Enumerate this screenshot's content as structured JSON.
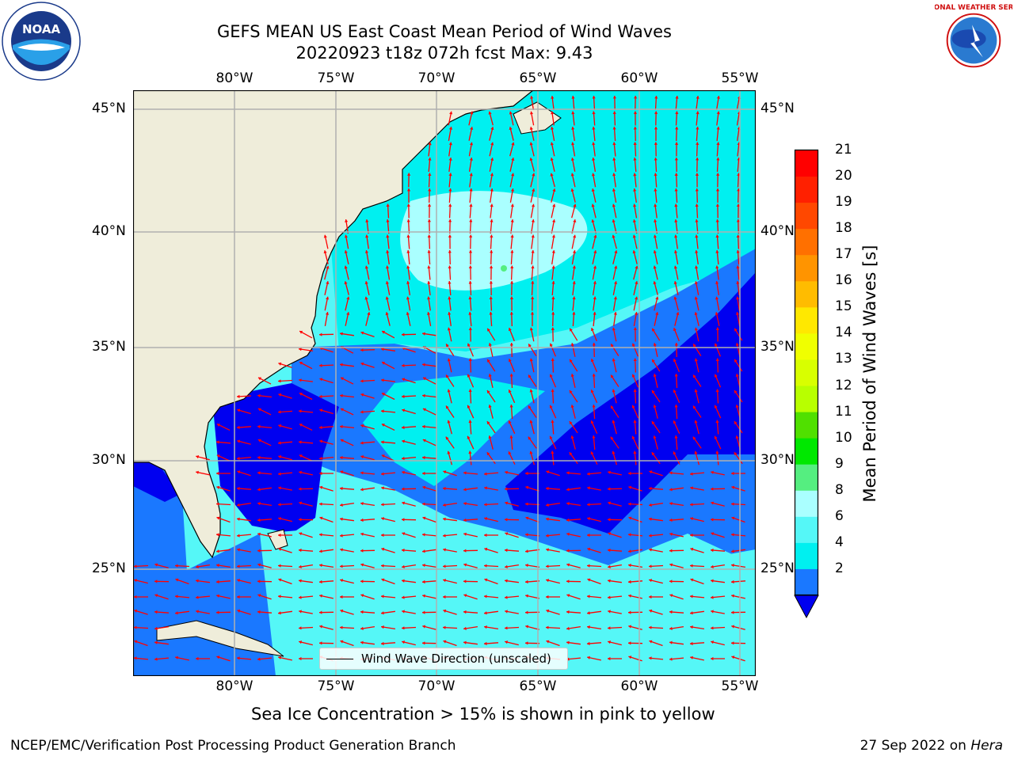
{
  "header": {
    "title": "GEFS MEAN US East Coast Mean Period of Wind Waves",
    "subtitle": "20220923 t18z 072h fcst   Max: 9.43"
  },
  "logos": {
    "left": {
      "icon": "noaa-logo-icon",
      "text": "NOAA"
    },
    "right": {
      "icon": "nws-logo-icon",
      "text": "NATIONAL WEATHER SERVICE"
    }
  },
  "map": {
    "lon_ticks": [
      "80°W",
      "75°W",
      "70°W",
      "65°W",
      "60°W",
      "55°W"
    ],
    "lat_ticks": [
      "45°N",
      "40°N",
      "35°N",
      "30°N",
      "25°N"
    ],
    "legend_text": "Wind Wave Direction (unscaled)",
    "colors": {
      "land": "#efedda",
      "lt_2": "#0000f0",
      "c2_4": "#1a78ff",
      "c4_6": "#00f0f0",
      "c6_8": "#55f7f7",
      "c8_9": "#aaffff",
      "c9_10": "#55ee80",
      "arrow": "#ff0000",
      "grid": "#b0b0b0",
      "coast": "#000000"
    }
  },
  "colorbar": {
    "title": "Mean Period of Wind Waves [s]",
    "ticks": [
      "21",
      "20",
      "19",
      "18",
      "17",
      "16",
      "15",
      "14",
      "13",
      "12",
      "11",
      "10",
      "9",
      "8",
      "6",
      "4",
      "2"
    ],
    "colors": [
      "#ff0000",
      "#ff2000",
      "#ff4800",
      "#ff7000",
      "#ff9400",
      "#ffbc00",
      "#ffe800",
      "#f0ff00",
      "#d8ff00",
      "#b8ff00",
      "#50e000",
      "#00e800",
      "#55ee80",
      "#aaffff",
      "#55f7f7",
      "#00f0f0",
      "#1a78ff"
    ],
    "extend_color": "#0000f0"
  },
  "footer": {
    "note": "Sea Ice Concentration > 15% is shown in pink to yellow",
    "left": "NCEP/EMC/Verification Post Processing Product Generation Branch",
    "right_date": "27 Sep 2022 on ",
    "right_system": "Hera"
  }
}
